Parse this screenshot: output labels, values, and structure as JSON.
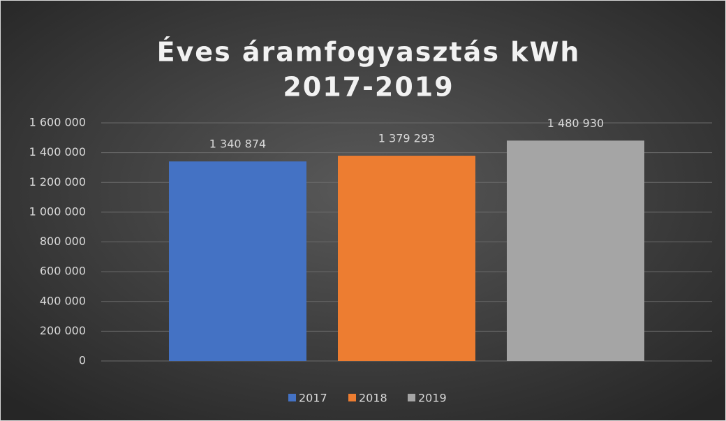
{
  "chart_data": {
    "type": "bar",
    "title": [
      "Éves áramfogyasztás kWh",
      "2017-2019"
    ],
    "categories": [
      null
    ],
    "series": [
      {
        "name": "2017",
        "color": "#4472c4",
        "values": [
          1340874
        ],
        "value_labels": [
          "1 340 874"
        ]
      },
      {
        "name": "2018",
        "color": "#ed7d31",
        "values": [
          1379293
        ],
        "value_labels": [
          "1 379 293"
        ]
      },
      {
        "name": "2019",
        "color": "#a5a5a5",
        "values": [
          1480930
        ],
        "value_labels": [
          "1 480 930"
        ]
      }
    ],
    "ylim": [
      0,
      1600000
    ],
    "yticks": [
      0,
      {
        "value": 200000,
        "label": "200 000"
      },
      {
        "value": 400000,
        "label": "400 000"
      },
      {
        "value": 600000,
        "label": "600 000"
      },
      {
        "value": 800000,
        "label": "800 000"
      },
      {
        "value": 1000000,
        "label": "1 000 000"
      },
      {
        "value": 1200000,
        "label": "1 200 000"
      },
      {
        "value": 1400000,
        "label": "1 400 000"
      },
      {
        "value": 1600000,
        "label": "1 600 000"
      }
    ],
    "grid": true,
    "legend": "bottom"
  }
}
